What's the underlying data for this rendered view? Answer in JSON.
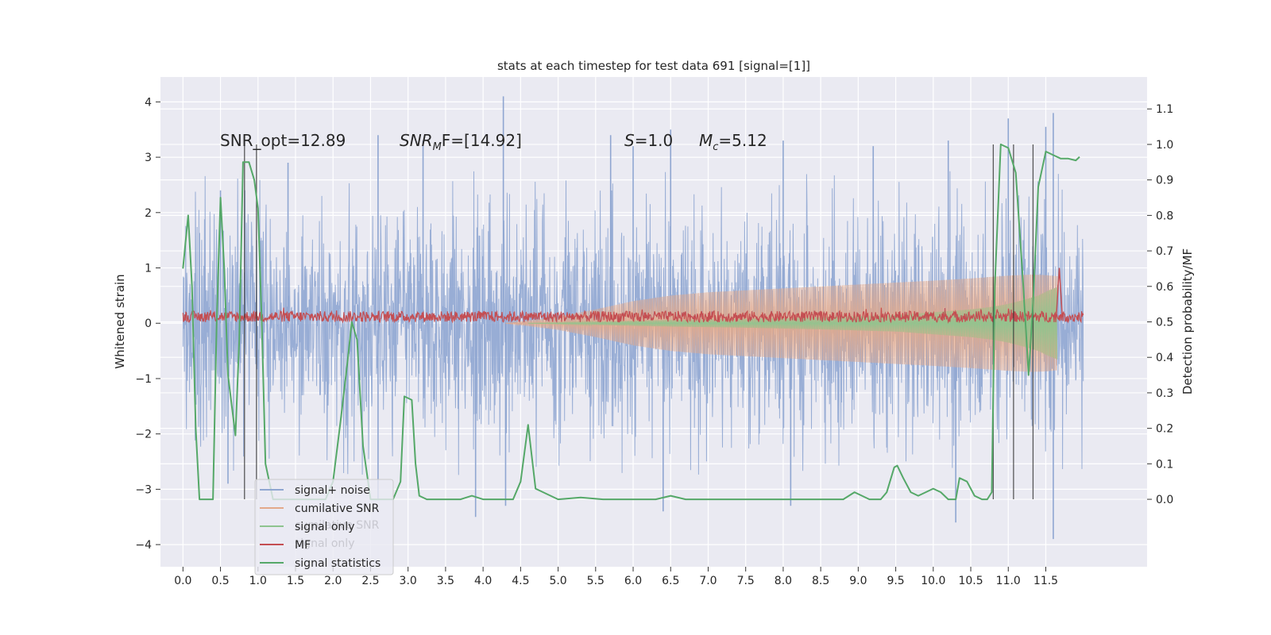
{
  "chart_data": {
    "type": "line",
    "title": "stats at each timestep for test data 691 [signal=[1]]",
    "xlabel": "",
    "ylabel": "Whitened strain",
    "y2label": "Detection probability/MF",
    "xlim": [
      -0.3,
      12.85
    ],
    "ylim": [
      -4.4,
      4.45
    ],
    "y2lim": [
      -0.19,
      1.19
    ],
    "x_ticks": [
      0.0,
      0.5,
      1.0,
      1.5,
      2.0,
      2.5,
      3.0,
      3.5,
      4.0,
      4.5,
      5.0,
      5.5,
      6.0,
      6.5,
      7.0,
      7.5,
      8.0,
      8.5,
      9.0,
      9.5,
      10.0,
      10.5,
      11.0,
      11.5
    ],
    "x_tick_labels": [
      "0.0",
      "0.5",
      "1.0",
      "1.5",
      "2.0",
      "2.5",
      "3.0",
      "3.5",
      "4.0",
      "4.5",
      "5.0",
      "5.5",
      "6.0",
      "6.5",
      "7.0",
      "7.5",
      "8.0",
      "8.5",
      "9.0",
      "9.5",
      "10.0",
      "10.5",
      "11.0",
      "11.5"
    ],
    "y_ticks": [
      4,
      3,
      2,
      1,
      0,
      -1,
      -2,
      -3,
      -4
    ],
    "y_tick_labels": [
      "4",
      "3",
      "2",
      "1",
      "0",
      "−1",
      "−2",
      "−3",
      "−4"
    ],
    "y2_ticks": [
      1.1,
      1.0,
      0.9,
      0.8,
      0.7,
      0.6,
      0.5,
      0.4,
      0.3,
      0.2,
      0.1,
      0.0
    ],
    "y2_tick_labels": [
      "1.1",
      "1.0",
      "0.9",
      "0.8",
      "0.7",
      "0.6",
      "0.5",
      "0.4",
      "0.3",
      "0.2",
      "0.1",
      "0.0"
    ],
    "grid": true,
    "legend_position": "lower-left",
    "annotations": {
      "snr_opt": "SNR_opt=12.89",
      "snr_mf_main": "SNR",
      "snr_mf_sub": "M",
      "snr_mf_rest": "F=[14.92]",
      "s_var": "S",
      "s_rest": "=1.0",
      "mc_var": "M",
      "mc_sub": "c",
      "mc_rest": "=5.12"
    },
    "legend": [
      {
        "label": "signal+ noise",
        "color": "#8fa6d1"
      },
      {
        "label": "cumilative SNR",
        "color": "#e3a98a"
      },
      {
        "label": "signal only",
        "color": "#8ec48e"
      },
      {
        "label": "MF",
        "color": "#c44e52"
      },
      {
        "label": "signal statistics",
        "color": "#55a868"
      }
    ],
    "legend_ghost": [
      {
        "label": "cumilative SNR"
      },
      {
        "label": "signal only"
      }
    ],
    "series": [
      {
        "name": "signal+ noise",
        "axis": "left",
        "x_range": [
          0.0,
          12.0
        ],
        "typical_band": [
          -1.35,
          1.35
        ],
        "max": 4.1,
        "min": -3.9,
        "peaks": [
          [
            0.5,
            2.4
          ],
          [
            1.4,
            2.9
          ],
          [
            2.6,
            3.4
          ],
          [
            3.2,
            3.3
          ],
          [
            4.27,
            4.1
          ],
          [
            5.7,
            3.4
          ],
          [
            6.0,
            3.2
          ],
          [
            6.5,
            3.5
          ],
          [
            8.0,
            3.3
          ],
          [
            9.2,
            3.2
          ],
          [
            10.2,
            3.3
          ],
          [
            11.0,
            3.7
          ],
          [
            11.5,
            3.55
          ],
          [
            11.6,
            3.8
          ]
        ],
        "troughs": [
          [
            0.6,
            -2.9
          ],
          [
            2.6,
            -3.2
          ],
          [
            3.9,
            -3.5
          ],
          [
            4.3,
            -3.3
          ],
          [
            6.4,
            -3.4
          ],
          [
            8.1,
            -3.3
          ],
          [
            10.3,
            -3.6
          ],
          [
            11.6,
            -3.9
          ]
        ]
      },
      {
        "name": "cumilative SNR",
        "axis": "left",
        "x_range": [
          4.3,
          11.65
        ],
        "envelope": [
          [
            4.3,
            0.0
          ],
          [
            5.0,
            0.12
          ],
          [
            5.5,
            0.25
          ],
          [
            6.0,
            0.4
          ],
          [
            6.5,
            0.5
          ],
          [
            7.0,
            0.56
          ],
          [
            8.0,
            0.63
          ],
          [
            9.0,
            0.7
          ],
          [
            10.0,
            0.77
          ],
          [
            10.5,
            0.81
          ],
          [
            11.0,
            0.86
          ],
          [
            11.3,
            0.88
          ],
          [
            11.5,
            0.87
          ],
          [
            11.65,
            0.85
          ]
        ]
      },
      {
        "name": "signal only",
        "axis": "left",
        "x_range": [
          4.6,
          11.65
        ],
        "envelope": [
          [
            4.6,
            0.0
          ],
          [
            5.5,
            0.03
          ],
          [
            6.5,
            0.06
          ],
          [
            7.5,
            0.08
          ],
          [
            8.5,
            0.11
          ],
          [
            9.5,
            0.15
          ],
          [
            10.0,
            0.2
          ],
          [
            10.5,
            0.25
          ],
          [
            10.8,
            0.3
          ],
          [
            11.0,
            0.35
          ],
          [
            11.2,
            0.42
          ],
          [
            11.4,
            0.5
          ],
          [
            11.55,
            0.6
          ],
          [
            11.65,
            0.65
          ]
        ]
      },
      {
        "name": "MF",
        "axis": "left",
        "x_range": [
          0.0,
          12.0
        ],
        "baseline": 0.12,
        "band": [
          0.02,
          0.22
        ],
        "spike": [
          11.68,
          1.0
        ]
      },
      {
        "name": "signal statistics",
        "axis": "right",
        "x": [
          0.0,
          0.07,
          0.12,
          0.17,
          0.22,
          0.3,
          0.4,
          0.45,
          0.5,
          0.55,
          0.6,
          0.7,
          0.75,
          0.8,
          0.88,
          0.95,
          1.0,
          1.05,
          1.1,
          1.2,
          1.3,
          1.4,
          1.5,
          1.6,
          1.7,
          1.8,
          1.9,
          2.0,
          2.1,
          2.2,
          2.25,
          2.32,
          2.4,
          2.5,
          2.6,
          2.7,
          2.8,
          2.9,
          2.95,
          3.05,
          3.1,
          3.15,
          3.25,
          3.5,
          3.7,
          3.85,
          4.0,
          4.2,
          4.4,
          4.5,
          4.6,
          4.7,
          5.0,
          5.3,
          5.6,
          6.0,
          6.3,
          6.5,
          6.7,
          7.0,
          7.5,
          8.0,
          8.5,
          8.8,
          8.95,
          9.15,
          9.3,
          9.38,
          9.48,
          9.52,
          9.6,
          9.7,
          9.8,
          9.9,
          10.0,
          10.1,
          10.2,
          10.3,
          10.35,
          10.45,
          10.55,
          10.65,
          10.72,
          10.78,
          10.82,
          10.9,
          11.0,
          11.1,
          11.2,
          11.27,
          11.33,
          11.4,
          11.5,
          11.6,
          11.7,
          11.8,
          11.9,
          11.95
        ],
        "y": [
          0.65,
          0.8,
          0.6,
          0.2,
          0.0,
          0.0,
          0.0,
          0.5,
          0.85,
          0.65,
          0.35,
          0.18,
          0.45,
          0.95,
          0.95,
          0.9,
          0.82,
          0.5,
          0.1,
          0.0,
          0.0,
          0.0,
          0.0,
          0.0,
          0.0,
          0.0,
          0.0,
          0.05,
          0.22,
          0.4,
          0.5,
          0.45,
          0.15,
          0.0,
          0.0,
          0.0,
          0.0,
          0.05,
          0.29,
          0.28,
          0.1,
          0.01,
          0.0,
          0.0,
          0.0,
          0.01,
          0.0,
          0.0,
          0.0,
          0.05,
          0.21,
          0.03,
          0.0,
          0.005,
          0.0,
          0.0,
          0.0,
          0.01,
          0.0,
          0.0,
          0.0,
          0.0,
          0.0,
          0.0,
          0.02,
          0.0,
          0.0,
          0.02,
          0.09,
          0.095,
          0.06,
          0.02,
          0.01,
          0.02,
          0.03,
          0.02,
          0.0,
          0.0,
          0.06,
          0.05,
          0.01,
          0.0,
          0.0,
          0.02,
          0.6,
          1.0,
          0.99,
          0.92,
          0.6,
          0.35,
          0.55,
          0.88,
          0.98,
          0.97,
          0.96,
          0.96,
          0.955,
          0.965
        ]
      }
    ],
    "vertical_markers": [
      {
        "x": 0.82,
        "y2_range": [
          0.0,
          1.0
        ]
      },
      {
        "x": 0.98,
        "y2_range": [
          0.0,
          1.0
        ]
      },
      {
        "x": 10.8,
        "y2_range": [
          0.0,
          1.0
        ]
      },
      {
        "x": 11.07,
        "y2_range": [
          0.0,
          1.0
        ]
      },
      {
        "x": 11.33,
        "y2_range": [
          0.0,
          1.0
        ]
      }
    ]
  }
}
